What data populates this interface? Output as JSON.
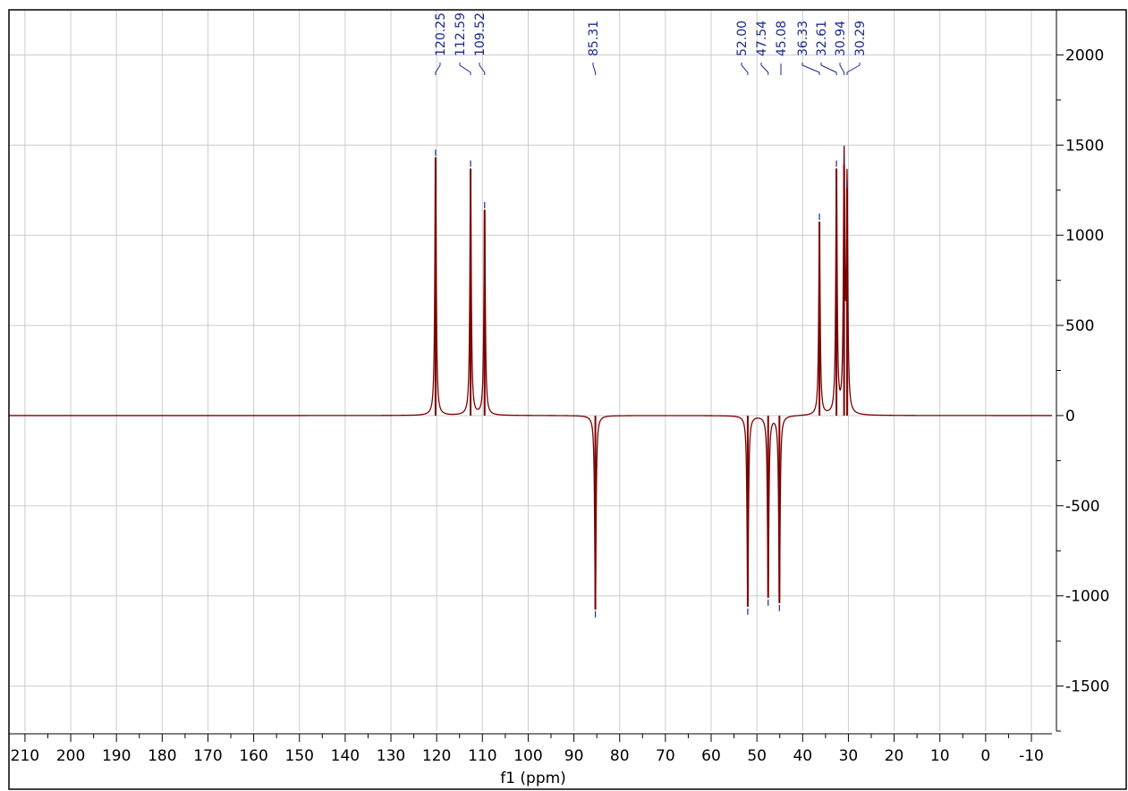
{
  "chart_data": {
    "type": "line",
    "xlabel": "f1 (ppm)",
    "ylabel": "",
    "xlim": [
      213.5,
      -14.5
    ],
    "ylim": [
      -1750,
      2250
    ],
    "x_axis_reversed": true,
    "x_ticks": [
      210,
      200,
      190,
      180,
      170,
      160,
      150,
      140,
      130,
      120,
      110,
      100,
      90,
      80,
      70,
      60,
      50,
      40,
      30,
      20,
      10,
      0,
      -10
    ],
    "x_tick_labels": [
      "210",
      "200",
      "190",
      "180",
      "170",
      "160",
      "150",
      "140",
      "130",
      "120",
      "110",
      "100",
      "90",
      "80",
      "70",
      "60",
      "50",
      "40",
      "30",
      "20",
      "10",
      "0",
      "-10"
    ],
    "y_ticks": [
      2000,
      1500,
      1000,
      500,
      0,
      -500,
      -1000,
      -1500
    ],
    "y_tick_labels": [
      "2000",
      "1500",
      "1000",
      "500",
      "0",
      "-500",
      "-1000",
      "-1500"
    ],
    "y_axis_position": "right",
    "grid": true,
    "series": [
      {
        "color": "#7a0000",
        "peaks": [
          {
            "x": 120.25,
            "y": 1430
          },
          {
            "x": 112.59,
            "y": 1370
          },
          {
            "x": 109.52,
            "y": 1140
          },
          {
            "x": 85.31,
            "y": -1075
          },
          {
            "x": 52.0,
            "y": -1060
          },
          {
            "x": 47.54,
            "y": -1010
          },
          {
            "x": 45.08,
            "y": -1040
          },
          {
            "x": 36.33,
            "y": 1075
          },
          {
            "x": 32.61,
            "y": 1370
          },
          {
            "x": 30.94,
            "y": 1390
          },
          {
            "x": 30.29,
            "y": 1260
          }
        ]
      }
    ],
    "peak_labels": [
      "120.25",
      "112.59",
      "109.52",
      "85.31",
      "52.00",
      "47.54",
      "45.08",
      "36.33",
      "32.61",
      "30.94",
      "30.29"
    ],
    "colors": {
      "spectrum": "#7a0000",
      "peak_marker": "#1a2a8c",
      "grid": "#cccccc",
      "frame": "#000000"
    }
  }
}
